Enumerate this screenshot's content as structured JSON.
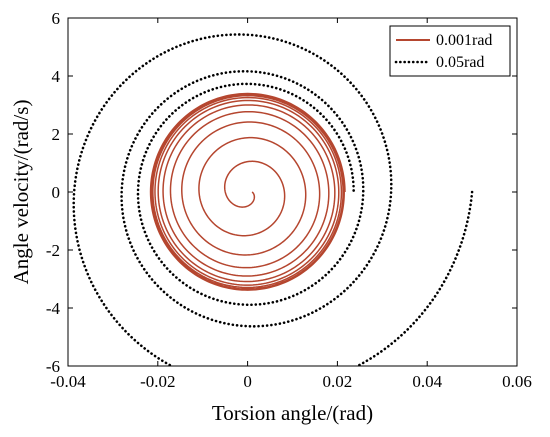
{
  "chart_data": {
    "type": "line",
    "title": "",
    "xlabel": "Torsion angle/(rad)",
    "ylabel": "Angle velocity/(rad/s)",
    "xlim": [
      -0.04,
      0.06
    ],
    "ylim": [
      -6,
      6
    ],
    "xticks": [
      -0.04,
      -0.02,
      0,
      0.02,
      0.04,
      0.06
    ],
    "xtick_labels": [
      "-0.04",
      "-0.02",
      "0",
      "0.02",
      "0.04",
      "0.06"
    ],
    "yticks": [
      -6,
      -4,
      -2,
      0,
      2,
      4,
      6
    ],
    "ytick_labels": [
      "-6",
      "-4",
      "-2",
      "0",
      "2",
      "4",
      "6"
    ],
    "grid": false,
    "legend_position": "top-right",
    "series": [
      {
        "name": "0.001rad",
        "color": "#b5462f",
        "style": "solid",
        "start": [
          0.001,
          0.0
        ],
        "limit_cycle": [
          0.022,
          3.45
        ],
        "turns": 10
      },
      {
        "name": "0.05rad",
        "color": "#000000",
        "style": "dotted",
        "start": [
          0.05,
          0.0
        ],
        "limit_cycle": [
          0.0225,
          3.5
        ],
        "turns": 3
      }
    ]
  }
}
